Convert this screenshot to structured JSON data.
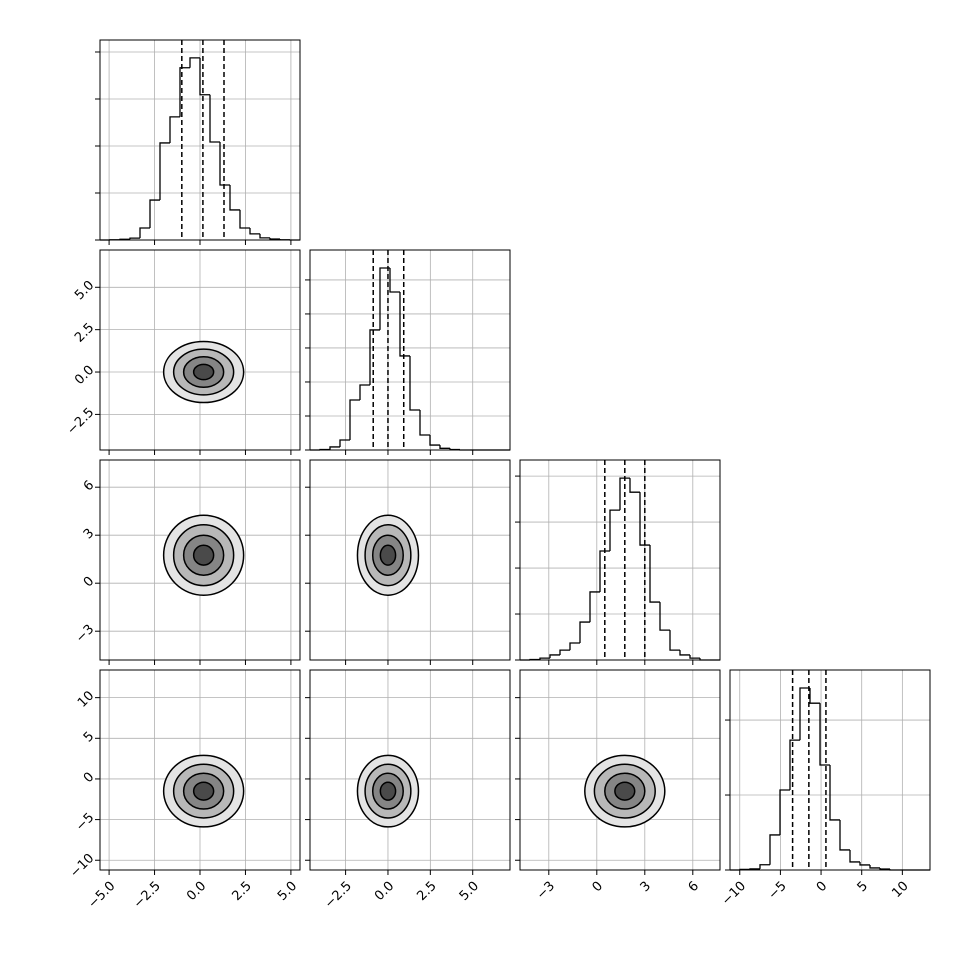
{
  "chart_data": {
    "type": "corner",
    "params": [
      {
        "xlim": [
          -5.5,
          5.5
        ],
        "ticks": [
          {
            "value": -5,
            "label": "−5.0"
          },
          {
            "value": -2.5,
            "label": "−2.5"
          },
          {
            "value": 0,
            "label": "0.0"
          },
          2.5,
          {
            "value": 5,
            "label": "5.0"
          }
        ],
        "bins": [
          -5.5,
          -4.95,
          -4.4,
          -3.85,
          -3.3,
          -2.75,
          -2.2,
          -1.65,
          -1.1,
          -0.55,
          0,
          0.55,
          1.1,
          1.65,
          2.2,
          2.75,
          3.3,
          3.85,
          4.4,
          4.95,
          5.5
        ],
        "counts": [
          0,
          1,
          3,
          8,
          51,
          170,
          413,
          524,
          733,
          775,
          618,
          417,
          234,
          128,
          51,
          26,
          9,
          4,
          1,
          0
        ],
        "ylim": [
          0,
          851
        ],
        "yticks": [
          0,
          200,
          400,
          600,
          800
        ],
        "quantiles": [
          -1.0,
          0.16,
          1.32
        ]
      },
      {
        "xlim": [
          -4.6,
          7.2
        ],
        "ticks": [
          {
            "value": -2.5,
            "label": "−2.5"
          },
          {
            "value": 0,
            "label": "0.0"
          },
          2.5,
          {
            "value": 5,
            "label": "5.0"
          }
        ],
        "bins": [
          -4.6,
          -4.01,
          -3.42,
          -2.83,
          -2.24,
          -1.65,
          -1.06,
          -0.47,
          0.12,
          0.71,
          1.3,
          1.89,
          2.48,
          3.07,
          3.66,
          4.25,
          4.84,
          5.43,
          6.02,
          6.61,
          7.2
        ],
        "counts": [
          0,
          3,
          18,
          59,
          294,
          382,
          706,
          1070,
          929,
          553,
          235,
          88,
          29,
          10,
          3,
          0,
          0,
          0,
          0,
          0
        ],
        "ylim": [
          0,
          1176
        ],
        "yticks": [
          0,
          200,
          400,
          600,
          800,
          1000
        ],
        "quantiles": [
          -0.87,
          0.0,
          0.93
        ]
      },
      {
        "xlim": [
          -4.8,
          7.7
        ],
        "ticks": [
          {
            "value": -3,
            "label": "−3"
          },
          0,
          3,
          6
        ],
        "bins": [
          -4.8,
          -4.175,
          -3.55,
          -2.925,
          -2.3,
          -1.675,
          -1.05,
          -0.425,
          0.2,
          0.825,
          1.45,
          2.075,
          2.7,
          3.325,
          3.95,
          4.575,
          5.2,
          5.825,
          6.45,
          7.075,
          7.7
        ],
        "counts": [
          0,
          2,
          8,
          22,
          43,
          74,
          165,
          296,
          474,
          652,
          791,
          730,
          500,
          252,
          130,
          43,
          22,
          8,
          0,
          0
        ],
        "ylim": [
          0,
          870
        ],
        "yticks": [
          0,
          200,
          400,
          600,
          800
        ],
        "quantiles": [
          0.5,
          1.75,
          3.0
        ]
      },
      {
        "xlim": [
          -11.2,
          13.4
        ],
        "ticks": [
          {
            "value": -10,
            "label": "−10"
          },
          {
            "value": -5,
            "label": "−5"
          },
          0,
          5,
          10
        ],
        "bins": [
          -11.2,
          -9.97,
          -8.74,
          -7.51,
          -6.28,
          -5.05,
          -3.82,
          -2.59,
          -1.36,
          -0.13,
          1.1,
          2.33,
          3.56,
          4.79,
          6.02,
          7.25,
          8.48,
          9.71,
          10.94,
          12.17,
          13.4
        ],
        "counts": [
          0,
          3,
          6,
          28,
          187,
          427,
          693,
          971,
          890,
          560,
          267,
          107,
          43,
          27,
          11,
          5,
          0,
          0,
          0,
          0
        ],
        "ylim": [
          0,
          1067
        ],
        "yticks": [
          0,
          400,
          800
        ],
        "quantiles": [
          -3.5,
          -1.5,
          0.6
        ]
      }
    ],
    "pairs": [
      [
        {
          "center": [
            0.2,
            0.0
          ],
          "contours": [
            [
              2.2,
              1.8
            ],
            [
              1.65,
              1.35
            ],
            [
              1.1,
              0.9
            ],
            [
              0.55,
              0.45
            ]
          ]
        }
      ],
      [
        {
          "center": [
            0.2,
            1.75
          ],
          "contours": [
            [
              2.2,
              2.5
            ],
            [
              1.65,
              1.9
            ],
            [
              1.1,
              1.25
            ],
            [
              0.55,
              0.62
            ]
          ]
        },
        {
          "center": [
            0.0,
            1.75
          ],
          "contours": [
            [
              1.8,
              2.5
            ],
            [
              1.35,
              1.9
            ],
            [
              0.9,
              1.25
            ],
            [
              0.45,
              0.62
            ]
          ]
        }
      ],
      [
        {
          "center": [
            0.2,
            -1.5
          ],
          "contours": [
            [
              2.2,
              4.4
            ],
            [
              1.65,
              3.3
            ],
            [
              1.1,
              2.2
            ],
            [
              0.55,
              1.1
            ]
          ]
        },
        {
          "center": [
            0.0,
            -1.5
          ],
          "contours": [
            [
              1.8,
              4.4
            ],
            [
              1.35,
              3.3
            ],
            [
              0.9,
              2.2
            ],
            [
              0.45,
              1.1
            ]
          ]
        },
        {
          "center": [
            1.75,
            -1.5
          ],
          "contours": [
            [
              2.5,
              4.4
            ],
            [
              1.9,
              3.3
            ],
            [
              1.25,
              2.2
            ],
            [
              0.62,
              1.1
            ]
          ]
        }
      ]
    ],
    "grid": true
  }
}
